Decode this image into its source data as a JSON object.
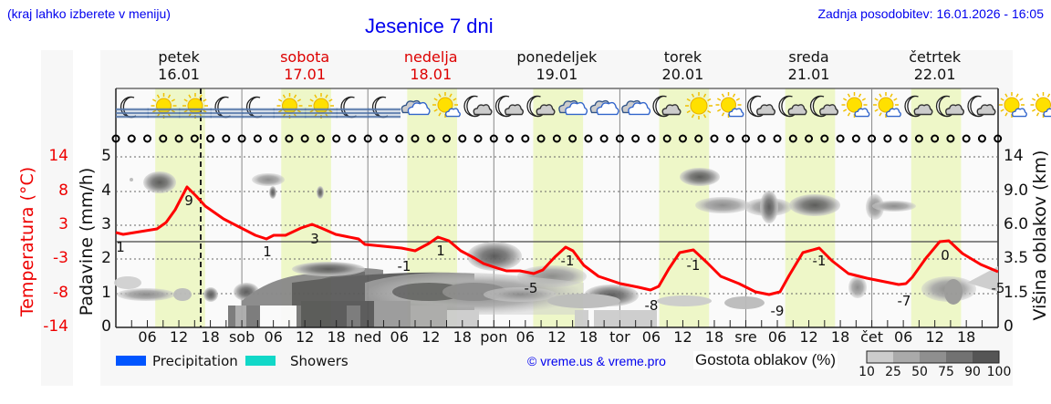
{
  "header": {
    "left_note": "(kraj lahko izberete v meniju)",
    "title": "Jesenice 7 dni",
    "last_update": "Zadnja posodobitev: 16.01.2026 - 16:05"
  },
  "days": [
    {
      "name": "petek",
      "date": "16.01",
      "weekend": false
    },
    {
      "name": "sobota",
      "date": "17.01",
      "weekend": true
    },
    {
      "name": "nedelja",
      "date": "18.01",
      "weekend": true
    },
    {
      "name": "ponedeljek",
      "date": "19.01",
      "weekend": false
    },
    {
      "name": "torek",
      "date": "20.01",
      "weekend": false
    },
    {
      "name": "sreda",
      "date": "21.01",
      "weekend": false
    },
    {
      "name": "četrtek",
      "date": "22.01",
      "weekend": false
    }
  ],
  "axes": {
    "temp_label": "Temperatura (°C)",
    "precip_label": "Padavine (mm/h)",
    "cloud_height_label": "Višina oblakov (km)",
    "temp_ticks": [
      "14",
      "8",
      "3",
      "-3",
      "-8",
      "-14"
    ],
    "precip_ticks": [
      "5",
      "4",
      "3",
      "2",
      "1",
      "0"
    ],
    "cloud_height_ticks": [
      "14",
      "9.0",
      "6.0",
      "3.5",
      "1.5",
      "0"
    ],
    "x_ticks": [
      "06",
      "12",
      "18",
      "sob",
      "06",
      "12",
      "18",
      "ned",
      "06",
      "12",
      "18",
      "pon",
      "06",
      "12",
      "18",
      "tor",
      "06",
      "12",
      "18",
      "sre",
      "06",
      "12",
      "18",
      "čet",
      "06",
      "12",
      "18"
    ]
  },
  "icons": [
    "moon-fog",
    "sun-fog",
    "sun-fog",
    "moon-fog",
    "moon-fog",
    "sun-fog",
    "sun-fog",
    "moon-fog",
    "moon-fog",
    "cloud",
    "sun-cloud",
    "moon-cloud",
    "moon-cloud",
    "moon-cloud",
    "cloud",
    "cloud",
    "cloud",
    "moon-cloud",
    "sun",
    "sun-cloud",
    "moon-cloud",
    "moon-cloud",
    "moon-cloud",
    "sun-cloud",
    "sun-cloud",
    "moon-cloud",
    "moon-cloud",
    "moon-cloud",
    "sun-cloud",
    "sun-cloud",
    "moon-cloud"
  ],
  "legend": {
    "precipitation": "Precipitation",
    "showers": "Showers",
    "copyright": "© vreme.us & vreme.pro",
    "cloud_density_label": "Gostota oblakov (%)",
    "cloud_density_ticks": [
      "10",
      "25",
      "50",
      "75",
      "90",
      "100"
    ],
    "colors": {
      "precipitation": "#0055ff",
      "showers": "#11d8c8",
      "temperature": "#ff0000",
      "daylight": "#eef7c8"
    }
  },
  "chart_data": {
    "type": "line",
    "title": "Jesenice 7 dni",
    "xlabel": "",
    "ylabel": "Temperatura (°C)",
    "ylim": [
      -14,
      14
    ],
    "x": [
      "16.01 00",
      "16.01 06",
      "16.01 12",
      "16.01 15",
      "16.01 18",
      "17.01 00",
      "17.01 03",
      "17.01 06",
      "17.01 12",
      "17.01 15",
      "17.01 18",
      "18.01 00",
      "18.01 06",
      "18.01 12",
      "18.01 18",
      "19.01 00",
      "19.01 06",
      "19.01 12",
      "19.01 18",
      "20.01 00",
      "20.01 06",
      "20.01 12",
      "20.01 18",
      "21.01 00",
      "21.01 06",
      "21.01 12",
      "21.01 18",
      "22.01 00",
      "22.01 06",
      "22.01 12",
      "22.01 18",
      "22.01 24"
    ],
    "series": [
      {
        "name": "Temperatura",
        "color": "#ff0000",
        "values": [
          1,
          2,
          9,
          5,
          3,
          0.5,
          1,
          1,
          3,
          1.5,
          0.5,
          -1,
          -1.5,
          0.5,
          -2.5,
          -4.5,
          -5,
          -1,
          -5,
          -7.5,
          -8,
          -1,
          -5,
          -8,
          -9,
          -1,
          -5,
          -6.5,
          -7,
          0,
          -3.5,
          -5
        ]
      },
      {
        "name": "Padavine (mm/h)",
        "color": "#0055ff",
        "values": []
      }
    ],
    "annotations": [
      {
        "label": "1",
        "x": "16.01 00"
      },
      {
        "label": "9",
        "x": "16.01 14"
      },
      {
        "label": "1",
        "x": "17.01 03"
      },
      {
        "label": "3",
        "x": "17.01 13"
      },
      {
        "label": "-1",
        "x": "18.01 02"
      },
      {
        "label": "1",
        "x": "18.01 14"
      },
      {
        "label": "-5",
        "x": "19.01 04"
      },
      {
        "label": "-1",
        "x": "19.01 14"
      },
      {
        "label": "-8",
        "x": "20.01 03"
      },
      {
        "label": "-1",
        "x": "20.01 14"
      },
      {
        "label": "-9",
        "x": "21.01 03"
      },
      {
        "label": "-1",
        "x": "21.01 14"
      },
      {
        "label": "-7",
        "x": "22.01 03"
      },
      {
        "label": "0",
        "x": "22.01 14"
      },
      {
        "label": "-5",
        "x": "22.01 24"
      }
    ],
    "current_time_marker": "16.01 16:05",
    "grid": true,
    "secondary_axes": {
      "precip_mm_h": [
        0,
        5
      ],
      "cloud_height_km": [
        "0",
        "1.5",
        "3.5",
        "6.0",
        "9.0",
        "14"
      ]
    },
    "cloud_density_legend": [
      10,
      25,
      50,
      75,
      90,
      100
    ]
  }
}
